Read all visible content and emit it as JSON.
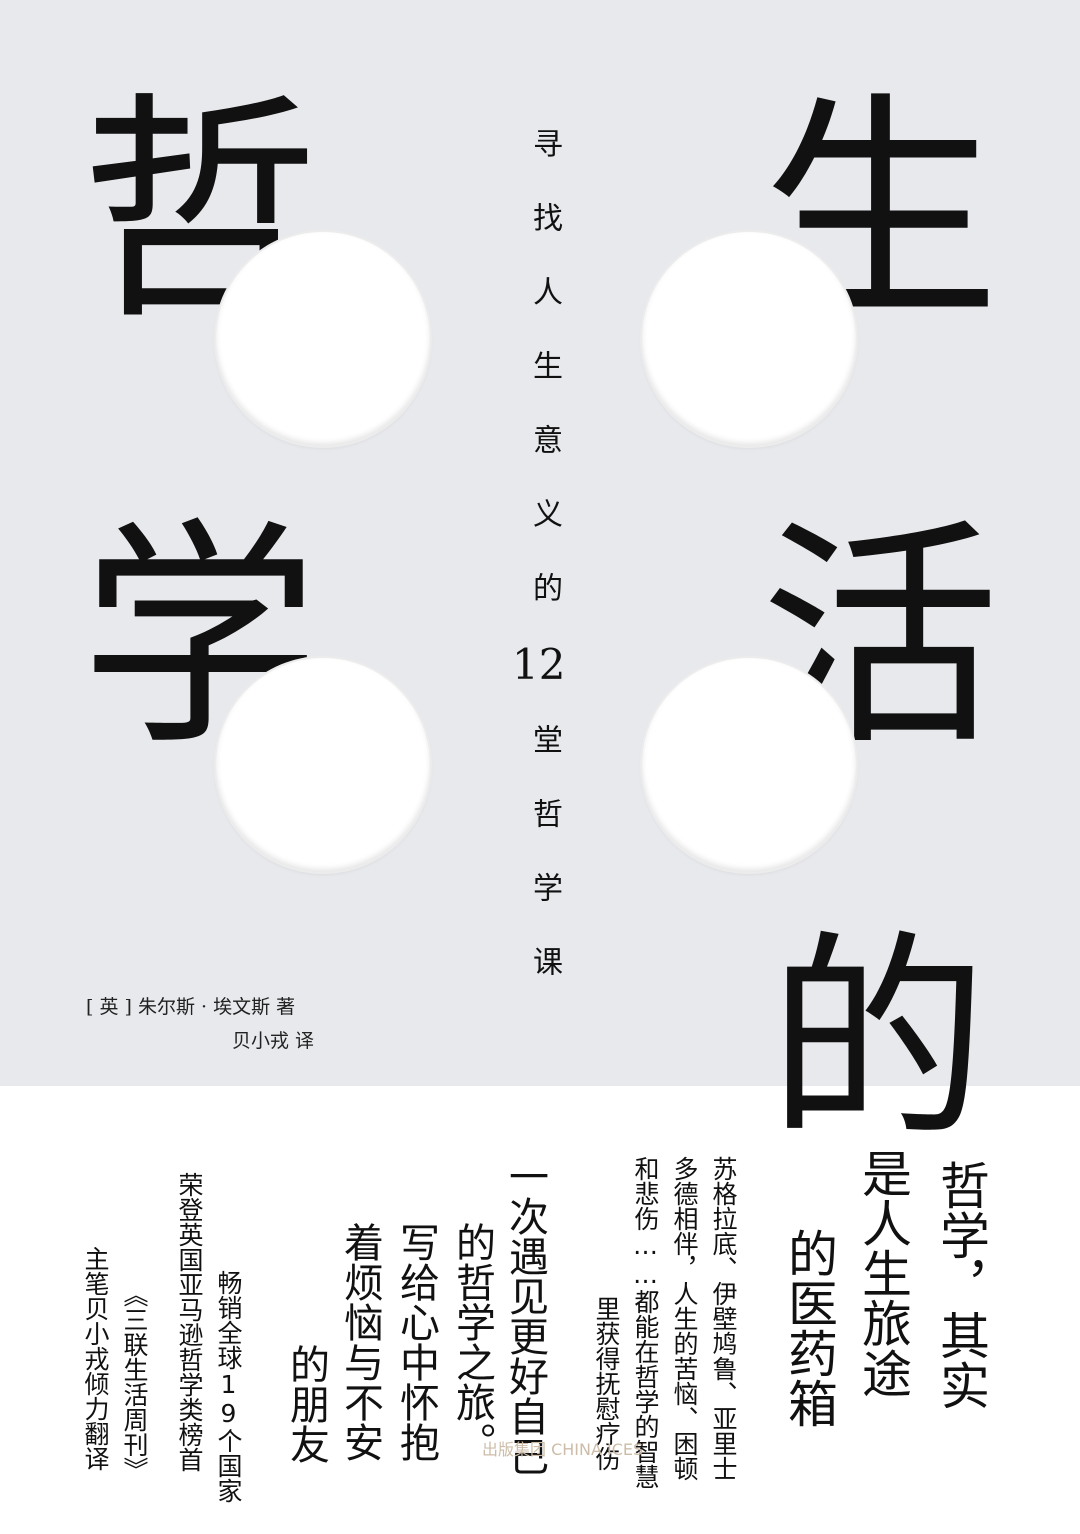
{
  "title": {
    "char1": "哲",
    "char2": "学",
    "char3": "生",
    "char4": "活",
    "char5": "的"
  },
  "subtitle": {
    "before": "寻找人生意义的",
    "number": "12",
    "after": "堂哲学课"
  },
  "author": {
    "line1": "[ 英 ] 朱尔斯 · 埃文斯 著",
    "line2": "贝小戎 译"
  },
  "blurb": {
    "slogan_col1": "哲学，其实",
    "slogan_col2": "是人生旅途",
    "slogan_col3": "的医药箱",
    "desc_col1": "苏格拉底、伊壁鸠鲁、亚里士",
    "desc_col2": "多德相伴，人生的苦恼、困顿",
    "desc_col3": "和悲伤……都能在哲学的智慧",
    "desc_col4": "里获得抚慰疗伤",
    "mid_col1": "一次遇见更好自己",
    "mid_col2": "的哲学之旅。",
    "mid_col3": "写给心中怀抱",
    "mid_col4": "着烦恼与不安",
    "mid_col5": "的朋友",
    "promo_col1": "畅销全球19个国家",
    "promo_col2": "荣登英国亚马逊哲学类榜首",
    "promo_col3": "《三联生活周刊》",
    "promo_col4": "主笔贝小戎倾力翻译"
  },
  "publisher_stamp": "出版集团 CHINA  ICES"
}
